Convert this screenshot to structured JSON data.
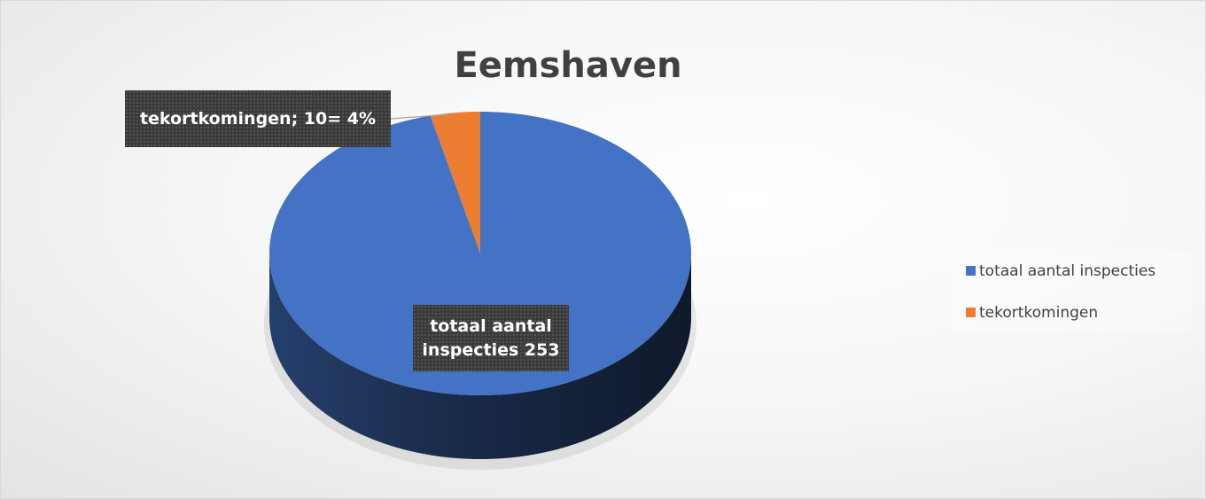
{
  "chart_data": {
    "type": "pie",
    "title": "Eemshaven",
    "categories": [
      "totaal aantal inspecties",
      "tekortkomingen"
    ],
    "values": [
      253,
      10
    ],
    "value_labels": [
      "totaal aantal inspecties 253",
      "tekortkomingen; 10= 4%"
    ],
    "colors": [
      "#4472c4",
      "#ed7d31"
    ],
    "legend": "right"
  }
}
